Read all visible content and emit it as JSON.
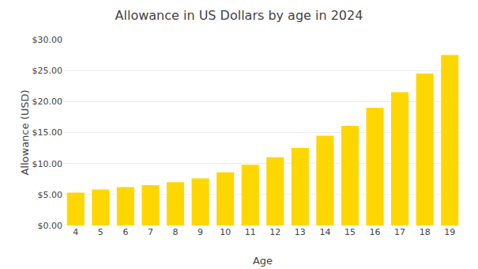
{
  "chart_data": {
    "type": "bar",
    "title": "Allowance in US Dollars by age in 2024",
    "xlabel": "Age",
    "ylabel": "Allowance (USD)",
    "categories": [
      "4",
      "5",
      "6",
      "7",
      "8",
      "9",
      "10",
      "11",
      "12",
      "13",
      "14",
      "15",
      "16",
      "17",
      "18",
      "19"
    ],
    "values": [
      5.3,
      5.8,
      6.2,
      6.5,
      7.0,
      7.6,
      8.6,
      9.8,
      11.0,
      12.5,
      14.5,
      16.1,
      19.0,
      21.5,
      24.5,
      27.5
    ],
    "color": "#FFD700",
    "ylim": [
      0,
      30
    ],
    "yticks": [
      {
        "value": 0,
        "label": "$0.00"
      },
      {
        "value": 5,
        "label": "$5.00"
      },
      {
        "value": 10,
        "label": "$10.00"
      },
      {
        "value": 15,
        "label": "$15.00"
      },
      {
        "value": 20,
        "label": "$20.00"
      },
      {
        "value": 25,
        "label": "$25.00"
      },
      {
        "value": 30,
        "label": "$30.00"
      }
    ],
    "grid": true
  }
}
